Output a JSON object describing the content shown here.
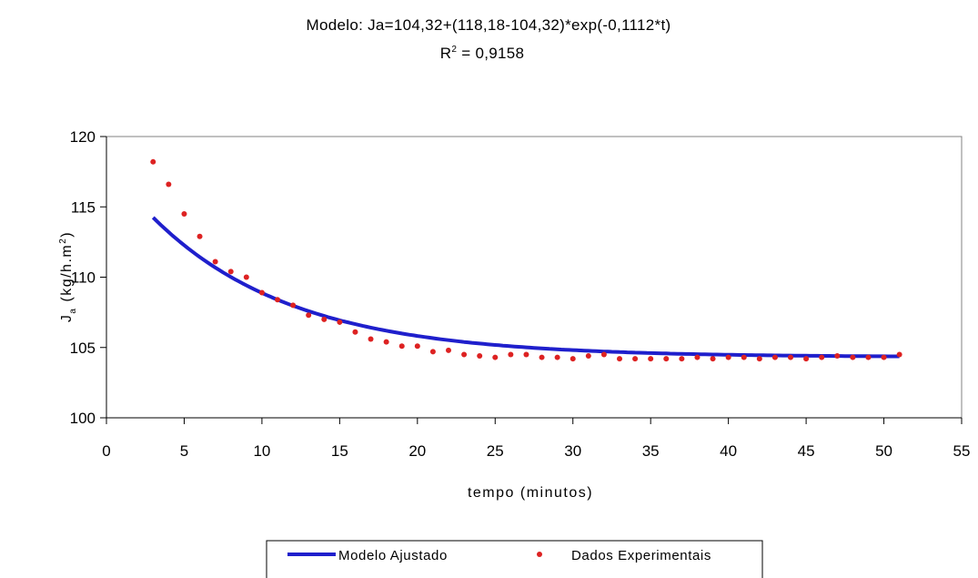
{
  "chart_data": {
    "type": "scatter",
    "title": "Modelo: Ja=104,32+(118,18-104,32)*exp(-0,1112*t)",
    "subtitle_prefix": "R",
    "subtitle_sup": "2",
    "subtitle_suffix": " = 0,9158",
    "xlabel": "tempo (minutos)",
    "ylabel_main": "J",
    "ylabel_sub": "a",
    "ylabel_rest": " (kg/h.m",
    "ylabel_sup": "2",
    "ylabel_end": ")",
    "xlim": [
      0,
      55
    ],
    "ylim": [
      100,
      120
    ],
    "x_ticks": [
      "0",
      "5",
      "10",
      "15",
      "20",
      "25",
      "30",
      "35",
      "40",
      "45",
      "50",
      "55"
    ],
    "y_ticks": [
      "100",
      "105",
      "110",
      "115",
      "120"
    ],
    "grid": false,
    "legend_position": "bottom",
    "colors": {
      "model": "#1f1fcc",
      "experimental": "#dd2222",
      "frame": "#808080"
    },
    "series": [
      {
        "name": "Modelo Ajustado",
        "kind": "line",
        "model": {
          "a": 104.32,
          "b": 118.18,
          "c": 104.32,
          "k": 0.1112
        },
        "x_range": [
          3,
          51
        ]
      },
      {
        "name": "Dados Experimentais",
        "kind": "points",
        "x": [
          3,
          4,
          5,
          6,
          7,
          8,
          9,
          10,
          11,
          12,
          13,
          14,
          15,
          16,
          17,
          18,
          19,
          20,
          21,
          22,
          23,
          24,
          25,
          26,
          27,
          28,
          29,
          30,
          31,
          32,
          33,
          34,
          35,
          36,
          37,
          38,
          39,
          40,
          41,
          42,
          43,
          44,
          45,
          46,
          47,
          48,
          49,
          50,
          51
        ],
        "y": [
          118.2,
          116.6,
          114.5,
          112.9,
          111.1,
          110.4,
          110.0,
          108.9,
          108.4,
          108.0,
          107.3,
          107.0,
          106.8,
          106.1,
          105.6,
          105.4,
          105.1,
          105.1,
          104.7,
          104.8,
          104.5,
          104.4,
          104.3,
          104.5,
          104.5,
          104.3,
          104.3,
          104.2,
          104.4,
          104.5,
          104.2,
          104.2,
          104.2,
          104.2,
          104.2,
          104.3,
          104.2,
          104.3,
          104.3,
          104.2,
          104.3,
          104.3,
          104.2,
          104.3,
          104.4,
          104.3,
          104.3,
          104.3,
          104.5
        ]
      }
    ]
  }
}
